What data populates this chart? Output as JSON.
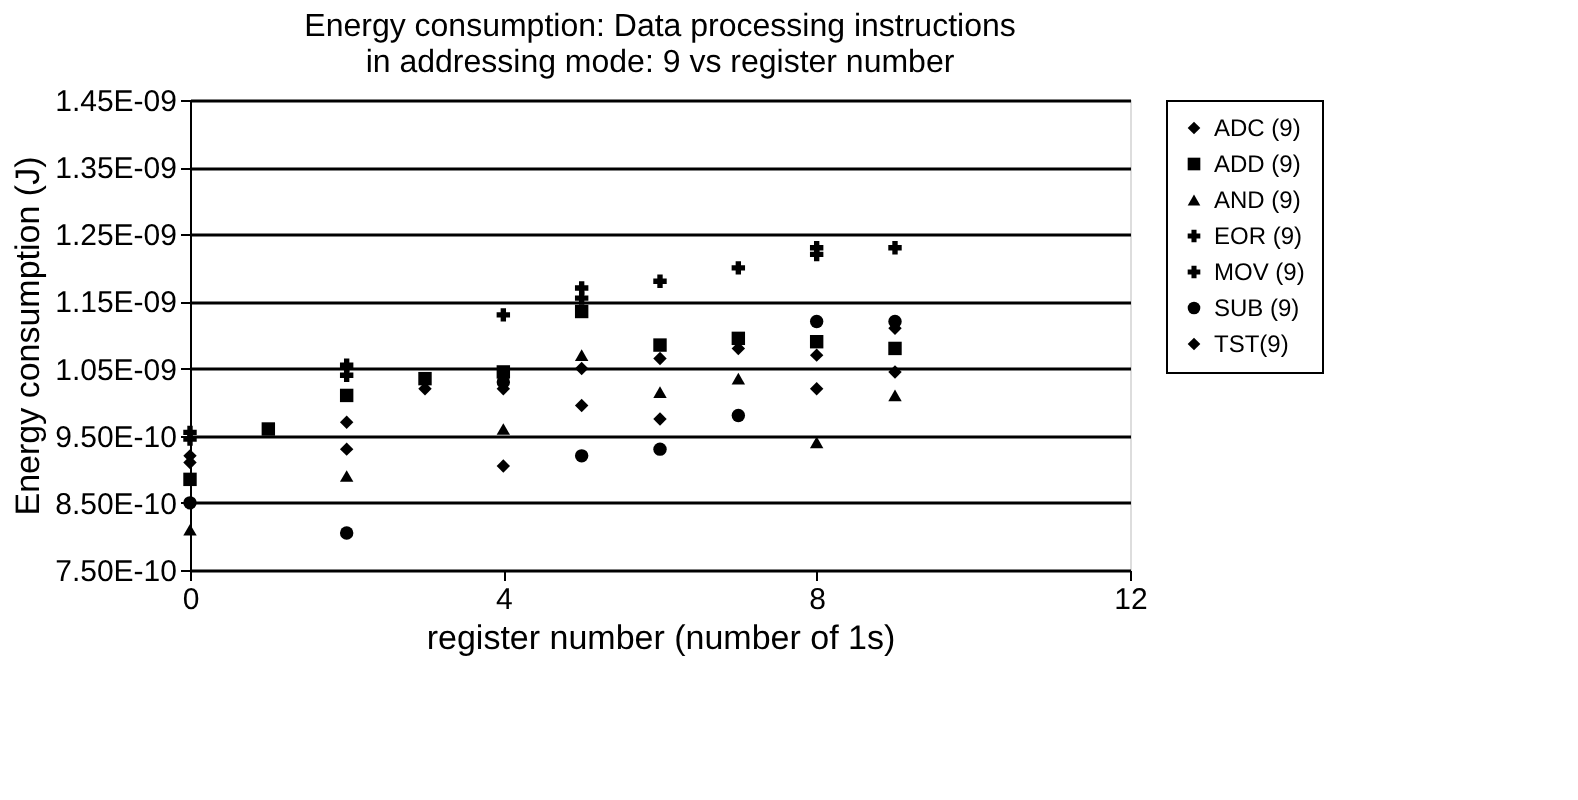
{
  "chart_data": {
    "type": "scatter",
    "title": "Energy consumption: Data processing instructions in addressing mode: 9 vs register number",
    "xlabel": "register number (number of 1s)",
    "ylabel": "Energy consumption (J)",
    "x": [
      0,
      1,
      2,
      3,
      4,
      5,
      6,
      7,
      8,
      9
    ],
    "series": [
      {
        "name": "ADC (9)",
        "color": "#000000",
        "marker": "diamond",
        "values": [
          9.2e-10,
          null,
          9.7e-10,
          1.02e-09,
          1.02e-09,
          1.05e-09,
          1.065e-09,
          1.08e-09,
          1.07e-09,
          1.11e-09
        ]
      },
      {
        "name": "ADD (9)",
        "color": "#000000",
        "marker": "square",
        "values": [
          8.85e-10,
          9.6e-10,
          1.01e-09,
          1.035e-09,
          1.045e-09,
          1.135e-09,
          1.085e-09,
          1.095e-09,
          1.09e-09,
          1.08e-09
        ]
      },
      {
        "name": "AND (9)",
        "color": "#000000",
        "marker": "triangle",
        "values": [
          8.1e-10,
          null,
          8.9e-10,
          null,
          9.6e-10,
          1.07e-09,
          1.015e-09,
          1.035e-09,
          9.4e-10,
          1.01e-09
        ]
      },
      {
        "name": "EOR (9)",
        "color": "#000000",
        "marker": "cross",
        "values": [
          9.55e-10,
          null,
          1.055e-09,
          null,
          1.13e-09,
          1.17e-09,
          1.18e-09,
          1.2e-09,
          1.23e-09,
          1.23e-09
        ]
      },
      {
        "name": "MOV (9)",
        "color": "#000000",
        "marker": "cross",
        "values": [
          9.45e-10,
          null,
          1.04e-09,
          null,
          null,
          1.155e-09,
          null,
          null,
          1.22e-09,
          null
        ]
      },
      {
        "name": "SUB (9)",
        "color": "#000000",
        "marker": "circle",
        "values": [
          8.5e-10,
          null,
          8.05e-10,
          null,
          1.03e-09,
          9.2e-10,
          9.3e-10,
          9.8e-10,
          1.12e-09,
          1.12e-09
        ]
      },
      {
        "name": "TST(9)",
        "color": "#000000",
        "marker": "diamond",
        "values": [
          9.1e-10,
          null,
          9.3e-10,
          null,
          9.05e-10,
          9.95e-10,
          9.75e-10,
          null,
          1.02e-09,
          1.045e-09
        ]
      }
    ],
    "xlim": [
      0,
      12
    ],
    "xticks": [
      0,
      4,
      8,
      12
    ],
    "ylim": [
      7.5e-10,
      1.45e-09
    ],
    "yticks": [
      {
        "value": 7.5e-10,
        "label": "7.50E-10"
      },
      {
        "value": 8.5e-10,
        "label": "8.50E-10"
      },
      {
        "value": 9.5e-10,
        "label": "9.50E-10"
      },
      {
        "value": 1.05e-09,
        "label": "1.05E-09"
      },
      {
        "value": 1.15e-09,
        "label": "1.15E-09"
      },
      {
        "value": 1.25e-09,
        "label": "1.25E-09"
      },
      {
        "value": 1.35e-09,
        "label": "1.35E-09"
      },
      {
        "value": 1.45e-09,
        "label": "1.45E-09"
      }
    ],
    "grid": "y",
    "legend": "right"
  }
}
